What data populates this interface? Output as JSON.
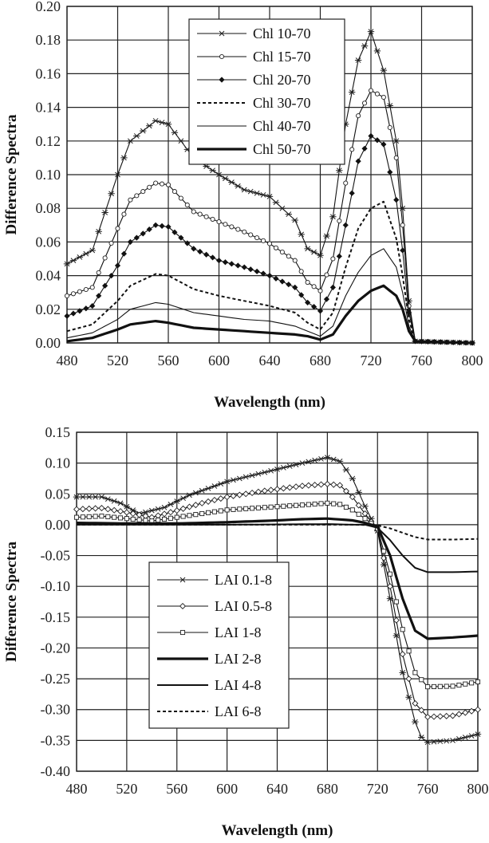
{
  "chart_data": [
    {
      "type": "line",
      "xlabel": "Wavelength (nm)",
      "ylabel": "Difference Spectra",
      "xlim": [
        480,
        800
      ],
      "ylim": [
        0.0,
        0.2
      ],
      "x_ticks": [
        "480",
        "520",
        "560",
        "600",
        "640",
        "680",
        "720",
        "760",
        "800"
      ],
      "y_ticks": [
        "0.00",
        "0.02",
        "0.04",
        "0.06",
        "0.08",
        "0.10",
        "0.12",
        "0.14",
        "0.16",
        "0.18",
        "0.20"
      ],
      "grid": "horizontal and vertical",
      "legend_position": "top-center",
      "series": [
        {
          "name": "Chl 10-70",
          "marker": "asterisk",
          "style": "thin",
          "points": [
            [
              480,
              0.047
            ],
            [
              500,
              0.055
            ],
            [
              520,
              0.1
            ],
            [
              530,
              0.12
            ],
            [
              550,
              0.132
            ],
            [
              560,
              0.13
            ],
            [
              580,
              0.11
            ],
            [
              600,
              0.1
            ],
            [
              620,
              0.091
            ],
            [
              640,
              0.087
            ],
            [
              660,
              0.073
            ],
            [
              670,
              0.056
            ],
            [
              680,
              0.052
            ],
            [
              690,
              0.075
            ],
            [
              700,
              0.13
            ],
            [
              710,
              0.168
            ],
            [
              720,
              0.185
            ],
            [
              730,
              0.162
            ],
            [
              740,
              0.12
            ],
            [
              745,
              0.08
            ],
            [
              750,
              0.025
            ],
            [
              755,
              0.001
            ],
            [
              800,
              0.0
            ]
          ]
        },
        {
          "name": "Chl 15-70",
          "marker": "circle",
          "style": "thin",
          "points": [
            [
              480,
              0.028
            ],
            [
              500,
              0.033
            ],
            [
              520,
              0.068
            ],
            [
              530,
              0.085
            ],
            [
              550,
              0.095
            ],
            [
              560,
              0.094
            ],
            [
              580,
              0.078
            ],
            [
              600,
              0.072
            ],
            [
              620,
              0.066
            ],
            [
              640,
              0.059
            ],
            [
              660,
              0.049
            ],
            [
              670,
              0.036
            ],
            [
              680,
              0.031
            ],
            [
              690,
              0.05
            ],
            [
              700,
              0.095
            ],
            [
              710,
              0.135
            ],
            [
              720,
              0.15
            ],
            [
              730,
              0.146
            ],
            [
              740,
              0.11
            ],
            [
              745,
              0.07
            ],
            [
              750,
              0.022
            ],
            [
              755,
              0.001
            ],
            [
              800,
              0.0
            ]
          ]
        },
        {
          "name": "Chl 20-70",
          "marker": "diamond",
          "style": "thin",
          "points": [
            [
              480,
              0.016
            ],
            [
              500,
              0.022
            ],
            [
              520,
              0.046
            ],
            [
              530,
              0.06
            ],
            [
              550,
              0.07
            ],
            [
              560,
              0.069
            ],
            [
              580,
              0.056
            ],
            [
              600,
              0.049
            ],
            [
              620,
              0.045
            ],
            [
              640,
              0.04
            ],
            [
              660,
              0.033
            ],
            [
              670,
              0.024
            ],
            [
              680,
              0.019
            ],
            [
              690,
              0.033
            ],
            [
              700,
              0.07
            ],
            [
              710,
              0.108
            ],
            [
              720,
              0.123
            ],
            [
              730,
              0.118
            ],
            [
              740,
              0.085
            ],
            [
              745,
              0.055
            ],
            [
              750,
              0.018
            ],
            [
              755,
              0.001
            ],
            [
              800,
              0.0
            ]
          ]
        },
        {
          "name": "Chl 30-70",
          "marker": "none",
          "style": "dashed",
          "points": [
            [
              480,
              0.007
            ],
            [
              500,
              0.011
            ],
            [
              520,
              0.025
            ],
            [
              530,
              0.034
            ],
            [
              550,
              0.041
            ],
            [
              560,
              0.04
            ],
            [
              580,
              0.032
            ],
            [
              600,
              0.028
            ],
            [
              620,
              0.025
            ],
            [
              640,
              0.022
            ],
            [
              660,
              0.018
            ],
            [
              670,
              0.012
            ],
            [
              680,
              0.008
            ],
            [
              690,
              0.018
            ],
            [
              700,
              0.045
            ],
            [
              710,
              0.068
            ],
            [
              720,
              0.08
            ],
            [
              730,
              0.084
            ],
            [
              740,
              0.062
            ],
            [
              745,
              0.04
            ],
            [
              750,
              0.014
            ],
            [
              755,
              0.001
            ],
            [
              800,
              0.0
            ]
          ]
        },
        {
          "name": "Chl 40-70",
          "marker": "none",
          "style": "thin",
          "points": [
            [
              480,
              0.003
            ],
            [
              500,
              0.006
            ],
            [
              520,
              0.014
            ],
            [
              530,
              0.02
            ],
            [
              550,
              0.024
            ],
            [
              560,
              0.023
            ],
            [
              580,
              0.018
            ],
            [
              600,
              0.016
            ],
            [
              620,
              0.014
            ],
            [
              640,
              0.013
            ],
            [
              660,
              0.01
            ],
            [
              670,
              0.007
            ],
            [
              680,
              0.004
            ],
            [
              690,
              0.01
            ],
            [
              700,
              0.028
            ],
            [
              710,
              0.042
            ],
            [
              720,
              0.052
            ],
            [
              730,
              0.056
            ],
            [
              740,
              0.045
            ],
            [
              745,
              0.03
            ],
            [
              750,
              0.01
            ],
            [
              755,
              0.001
            ],
            [
              800,
              0.0
            ]
          ]
        },
        {
          "name": "Chl 50-70",
          "marker": "none",
          "style": "thick",
          "points": [
            [
              480,
              0.001
            ],
            [
              500,
              0.003
            ],
            [
              520,
              0.008
            ],
            [
              530,
              0.011
            ],
            [
              550,
              0.013
            ],
            [
              560,
              0.012
            ],
            [
              580,
              0.009
            ],
            [
              600,
              0.008
            ],
            [
              620,
              0.007
            ],
            [
              640,
              0.006
            ],
            [
              660,
              0.005
            ],
            [
              670,
              0.004
            ],
            [
              680,
              0.002
            ],
            [
              690,
              0.005
            ],
            [
              700,
              0.016
            ],
            [
              710,
              0.025
            ],
            [
              720,
              0.031
            ],
            [
              730,
              0.034
            ],
            [
              740,
              0.028
            ],
            [
              745,
              0.02
            ],
            [
              750,
              0.007
            ],
            [
              755,
              0.001
            ],
            [
              800,
              0.0
            ]
          ]
        }
      ]
    },
    {
      "type": "line",
      "xlabel": "Wavelength (nm)",
      "ylabel": "Difference Spectra",
      "xlim": [
        480,
        800
      ],
      "ylim": [
        -0.4,
        0.15
      ],
      "x_ticks": [
        "480",
        "520",
        "560",
        "600",
        "640",
        "680",
        "720",
        "760",
        "800"
      ],
      "y_ticks": [
        "0.15",
        "0.10",
        "0.05",
        "0.00",
        "-0.05",
        "-0.10",
        "-0.15",
        "-0.20",
        "-0.25",
        "-0.30",
        "-0.35",
        "-0.40"
      ],
      "grid": "horizontal and vertical",
      "legend_position": "lower-left",
      "series": [
        {
          "name": "LAI 0.1-8",
          "marker": "asterisk",
          "style": "thin",
          "points": [
            [
              480,
              0.045
            ],
            [
              500,
              0.045
            ],
            [
              515,
              0.035
            ],
            [
              530,
              0.018
            ],
            [
              550,
              0.028
            ],
            [
              570,
              0.048
            ],
            [
              600,
              0.07
            ],
            [
              630,
              0.085
            ],
            [
              660,
              0.1
            ],
            [
              680,
              0.109
            ],
            [
              690,
              0.103
            ],
            [
              700,
              0.075
            ],
            [
              710,
              0.03
            ],
            [
              720,
              -0.01
            ],
            [
              730,
              -0.12
            ],
            [
              740,
              -0.24
            ],
            [
              750,
              -0.32
            ],
            [
              755,
              -0.345
            ],
            [
              760,
              -0.353
            ],
            [
              780,
              -0.35
            ],
            [
              800,
              -0.34
            ]
          ]
        },
        {
          "name": "LAI 0.5-8",
          "marker": "diamond-open",
          "style": "thin",
          "points": [
            [
              480,
              0.025
            ],
            [
              500,
              0.027
            ],
            [
              520,
              0.02
            ],
            [
              540,
              0.012
            ],
            [
              560,
              0.023
            ],
            [
              580,
              0.035
            ],
            [
              600,
              0.045
            ],
            [
              630,
              0.055
            ],
            [
              660,
              0.063
            ],
            [
              680,
              0.066
            ],
            [
              690,
              0.064
            ],
            [
              700,
              0.045
            ],
            [
              710,
              0.018
            ],
            [
              720,
              -0.008
            ],
            [
              730,
              -0.1
            ],
            [
              740,
              -0.21
            ],
            [
              750,
              -0.29
            ],
            [
              760,
              -0.312
            ],
            [
              780,
              -0.31
            ],
            [
              800,
              -0.3
            ]
          ]
        },
        {
          "name": "LAI 1-8",
          "marker": "square",
          "style": "thin",
          "points": [
            [
              480,
              0.012
            ],
            [
              500,
              0.014
            ],
            [
              520,
              0.01
            ],
            [
              540,
              0.006
            ],
            [
              560,
              0.012
            ],
            [
              580,
              0.018
            ],
            [
              600,
              0.024
            ],
            [
              630,
              0.028
            ],
            [
              660,
              0.032
            ],
            [
              680,
              0.035
            ],
            [
              690,
              0.033
            ],
            [
              700,
              0.024
            ],
            [
              710,
              0.01
            ],
            [
              720,
              -0.006
            ],
            [
              730,
              -0.08
            ],
            [
              740,
              -0.17
            ],
            [
              750,
              -0.24
            ],
            [
              760,
              -0.263
            ],
            [
              780,
              -0.262
            ],
            [
              800,
              -0.255
            ]
          ]
        },
        {
          "name": "LAI 2-8",
          "marker": "none",
          "style": "thick",
          "points": [
            [
              480,
              0.003
            ],
            [
              520,
              0.002
            ],
            [
              560,
              0.002
            ],
            [
              600,
              0.004
            ],
            [
              640,
              0.007
            ],
            [
              660,
              0.009
            ],
            [
              680,
              0.01
            ],
            [
              700,
              0.007
            ],
            [
              710,
              0.003
            ],
            [
              720,
              -0.003
            ],
            [
              730,
              -0.05
            ],
            [
              740,
              -0.12
            ],
            [
              750,
              -0.172
            ],
            [
              760,
              -0.185
            ],
            [
              780,
              -0.183
            ],
            [
              800,
              -0.18
            ]
          ]
        },
        {
          "name": "LAI 4-8",
          "marker": "none",
          "style": "medium",
          "points": [
            [
              480,
              0.0
            ],
            [
              520,
              0.0
            ],
            [
              600,
              0.0
            ],
            [
              680,
              0.001
            ],
            [
              700,
              0.0
            ],
            [
              710,
              0.0
            ],
            [
              720,
              -0.005
            ],
            [
              730,
              -0.025
            ],
            [
              740,
              -0.05
            ],
            [
              750,
              -0.07
            ],
            [
              760,
              -0.077
            ],
            [
              780,
              -0.077
            ],
            [
              800,
              -0.076
            ]
          ]
        },
        {
          "name": "LAI 6-8",
          "marker": "none",
          "style": "dashed",
          "points": [
            [
              480,
              0.0
            ],
            [
              600,
              0.0
            ],
            [
              700,
              0.0
            ],
            [
              720,
              -0.001
            ],
            [
              730,
              -0.006
            ],
            [
              740,
              -0.013
            ],
            [
              750,
              -0.02
            ],
            [
              760,
              -0.024
            ],
            [
              780,
              -0.024
            ],
            [
              800,
              -0.023
            ]
          ]
        }
      ]
    }
  ]
}
